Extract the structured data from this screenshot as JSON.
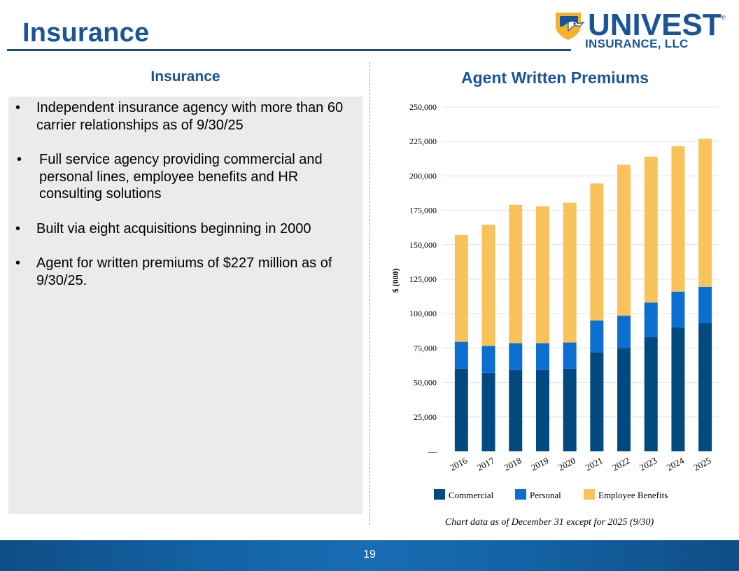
{
  "page": {
    "title": "Insurance",
    "page_number": "19"
  },
  "logo": {
    "name": "UNIVEST",
    "subtitle": "INSURANCE, LLC",
    "registered": "®"
  },
  "left": {
    "heading": "Insurance",
    "bullet_symbol": "•",
    "bullets": [
      "Independent insurance agency with more than 60 carrier relationships as of 9/30/25",
      "Full service agency providing commercial and personal lines, employee benefits and HR consulting solutions",
      "Built via eight acquisitions beginning in 2000",
      "Agent for written premiums of $227 million as of 9/30/25."
    ]
  },
  "chart_title": "Agent Written Premiums",
  "chart_note": "Chart data as of December 31 except for 2025 (9/30)",
  "chart_data": {
    "type": "bar",
    "stacked": true,
    "title": "Agent Written Premiums",
    "xlabel": "",
    "ylabel": "$ (000)",
    "ylim": [
      0,
      250000
    ],
    "yticks": [
      0,
      25000,
      50000,
      75000,
      100000,
      125000,
      150000,
      175000,
      200000,
      225000,
      250000
    ],
    "ytick_labels": [
      "—",
      "25,000",
      "50,000",
      "75,000",
      "100,000",
      "125,000",
      "150,000",
      "175,000",
      "200,000",
      "225,000",
      "250,000"
    ],
    "categories": [
      "2016",
      "2017",
      "2018",
      "2019",
      "2020",
      "2021",
      "2022",
      "2023",
      "2024",
      "2025"
    ],
    "series": [
      {
        "name": "Commercial",
        "color": "#004a80",
        "values": [
          60000,
          57000,
          59000,
          59000,
          60000,
          72000,
          75000,
          83000,
          90000,
          93000
        ]
      },
      {
        "name": "Personal",
        "color": "#0a6fd0",
        "values": [
          19500,
          19500,
          19500,
          19500,
          19000,
          23000,
          23500,
          25000,
          26000,
          26500
        ]
      },
      {
        "name": "Employee Benefits",
        "color": "#f9c25b",
        "values": [
          77500,
          88000,
          100500,
          99500,
          101500,
          99500,
          109500,
          106000,
          105500,
          107500
        ]
      }
    ],
    "legend": "bottom-center",
    "grid": true
  }
}
